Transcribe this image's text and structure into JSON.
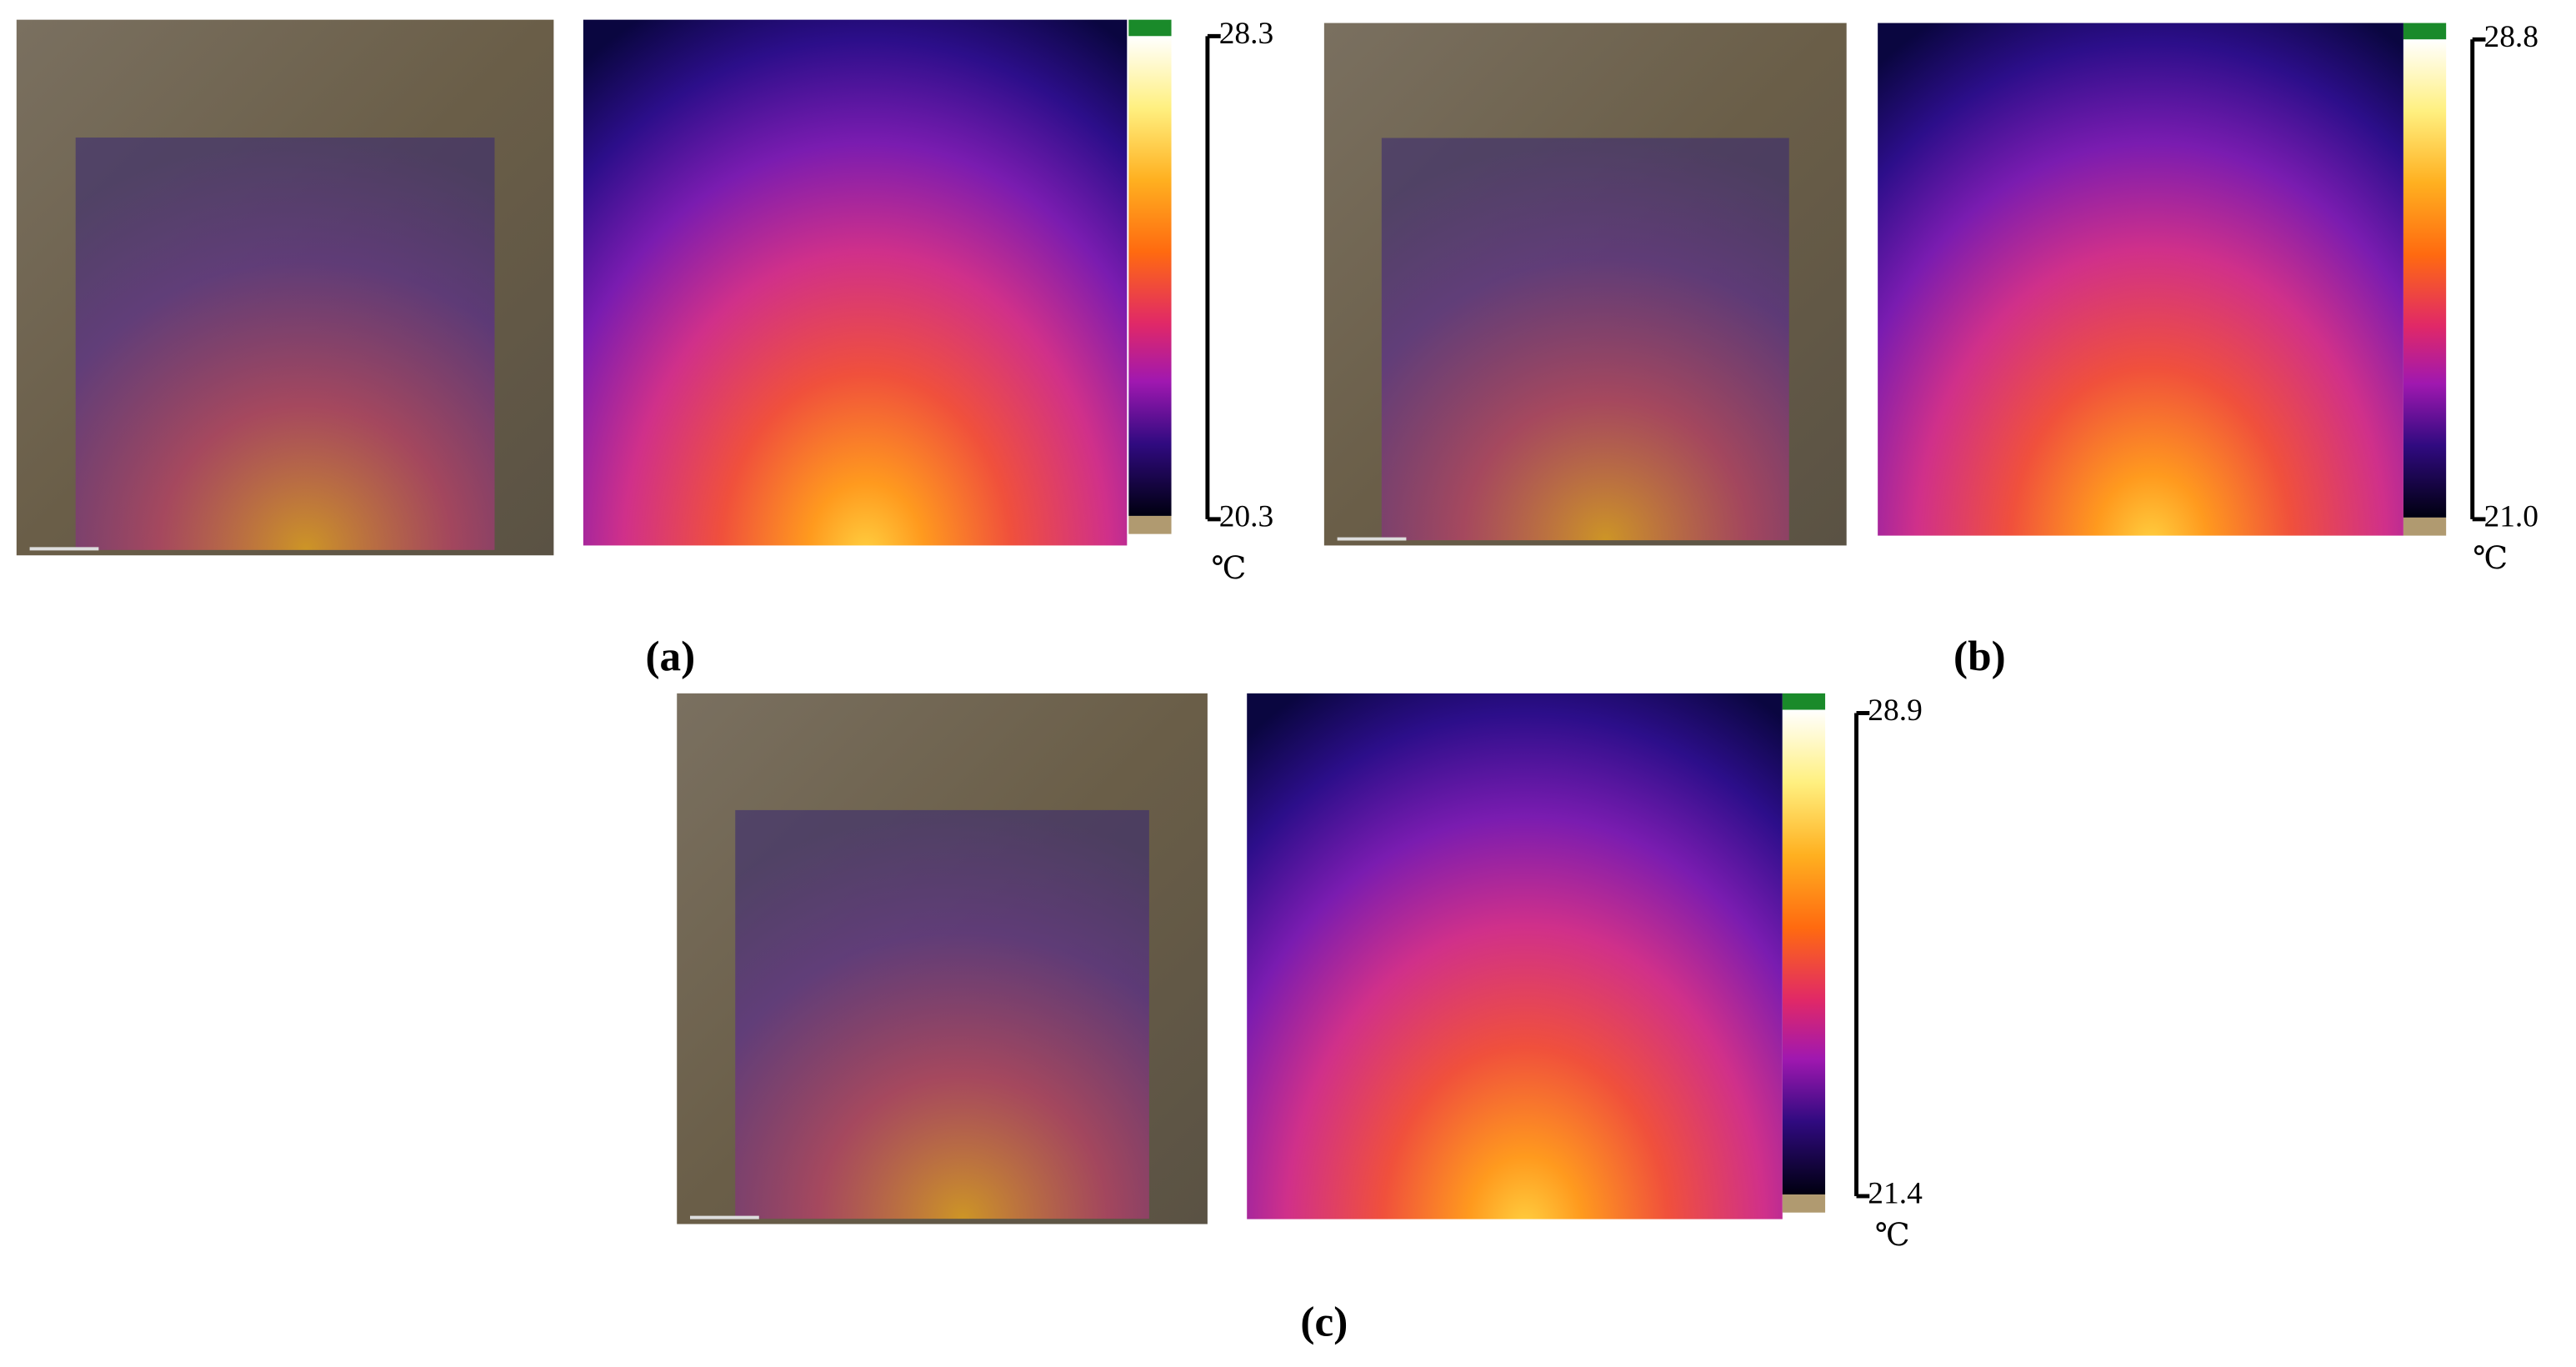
{
  "panels": [
    {
      "label": "(a)",
      "scale_max": "28.3",
      "scale_min": "20.3",
      "unit": "℃"
    },
    {
      "label": "(b)",
      "scale_max": "28.8",
      "scale_min": "21.0",
      "unit": "℃"
    },
    {
      "label": "(c)",
      "scale_max": "28.9",
      "scale_min": "21.4",
      "unit": "℃"
    }
  ]
}
